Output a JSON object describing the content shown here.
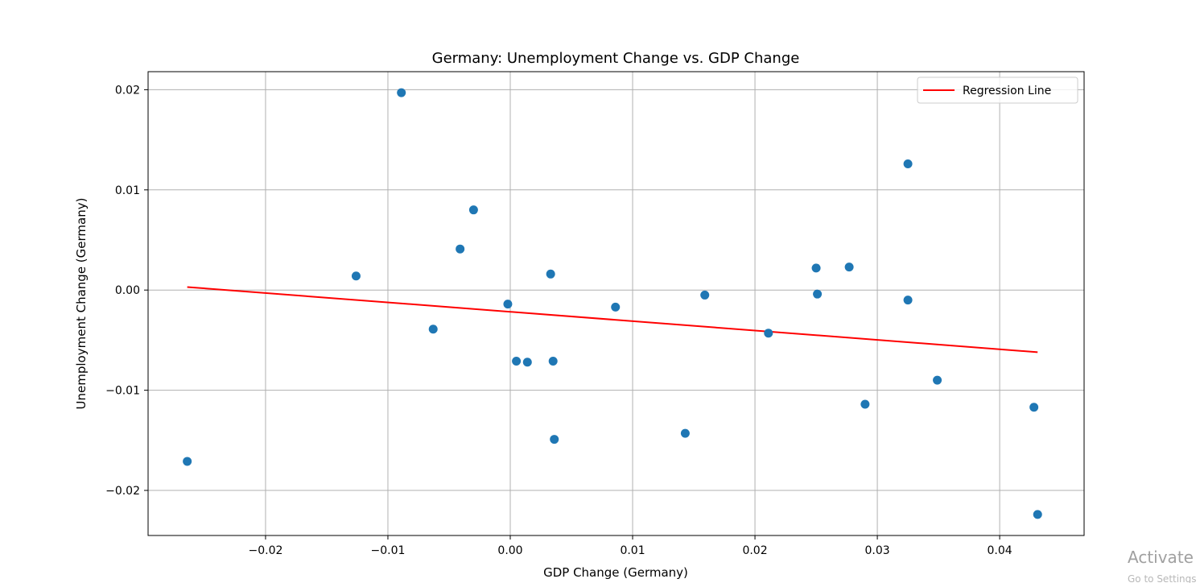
{
  "chart_data": {
    "type": "scatter",
    "title": "Germany: Unemployment Change vs. GDP Change",
    "xlabel": "GDP Change (Germany)",
    "ylabel": "Unemployment Change (Germany)",
    "xlim": [
      -0.0296,
      0.0469
    ],
    "ylim": [
      -0.0245,
      0.0218
    ],
    "xticks": [
      -0.02,
      -0.01,
      0.0,
      0.01,
      0.02,
      0.03,
      0.04
    ],
    "xtick_labels": [
      "−0.02",
      "−0.01",
      "0.00",
      "0.01",
      "0.02",
      "0.03",
      "0.04"
    ],
    "yticks": [
      -0.02,
      -0.01,
      0.0,
      0.01,
      0.02
    ],
    "ytick_labels": [
      "−0.02",
      "−0.01",
      "0.00",
      "0.01",
      "0.02"
    ],
    "grid": true,
    "legend_position": "top-right",
    "series": [
      {
        "type": "scatter",
        "color": "#1f77b4",
        "x": [
          -0.0264,
          -0.0126,
          -0.0089,
          -0.0063,
          -0.0041,
          -0.003,
          -0.0002,
          0.0005,
          0.0014,
          0.0033,
          0.0035,
          0.0036,
          0.0086,
          0.0143,
          0.0159,
          0.0211,
          0.025,
          0.0251,
          0.0277,
          0.029,
          0.0325,
          0.0325,
          0.0349,
          0.0428,
          0.0431
        ],
        "y": [
          -0.0171,
          0.0014,
          0.0197,
          -0.0039,
          0.0041,
          0.008,
          -0.0014,
          -0.0071,
          -0.0072,
          0.0016,
          -0.0071,
          -0.0149,
          -0.0017,
          -0.0143,
          -0.0005,
          -0.0043,
          0.0022,
          -0.0004,
          0.0023,
          -0.0114,
          0.0126,
          -0.001,
          -0.009,
          -0.0117,
          -0.0224
        ]
      },
      {
        "type": "line",
        "name": "Regression Line",
        "color": "#ff0000",
        "x": [
          -0.0264,
          0.0431
        ],
        "y": [
          0.0003,
          -0.0062
        ]
      }
    ]
  },
  "overlay": {
    "watermark": "Activate",
    "watermark_sub": "Go to Settings"
  }
}
